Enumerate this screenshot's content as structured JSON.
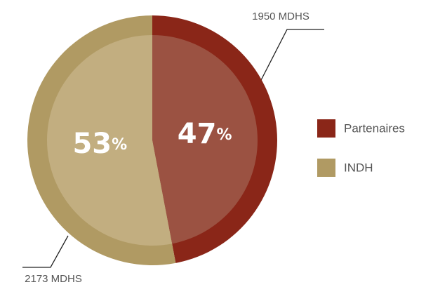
{
  "chart_data": {
    "type": "pie",
    "categories": [
      "Partenaires",
      "INDH"
    ],
    "values": [
      47,
      53
    ],
    "value_labels": [
      "47%",
      "53%"
    ],
    "colors": [
      "#8a2618",
      "#b09a63"
    ],
    "inner_colors": [
      "#9b5242",
      "#c2ae80"
    ],
    "annotations": [
      "1950 MDHS",
      "2173 MDHS"
    ],
    "legend": "right"
  }
}
